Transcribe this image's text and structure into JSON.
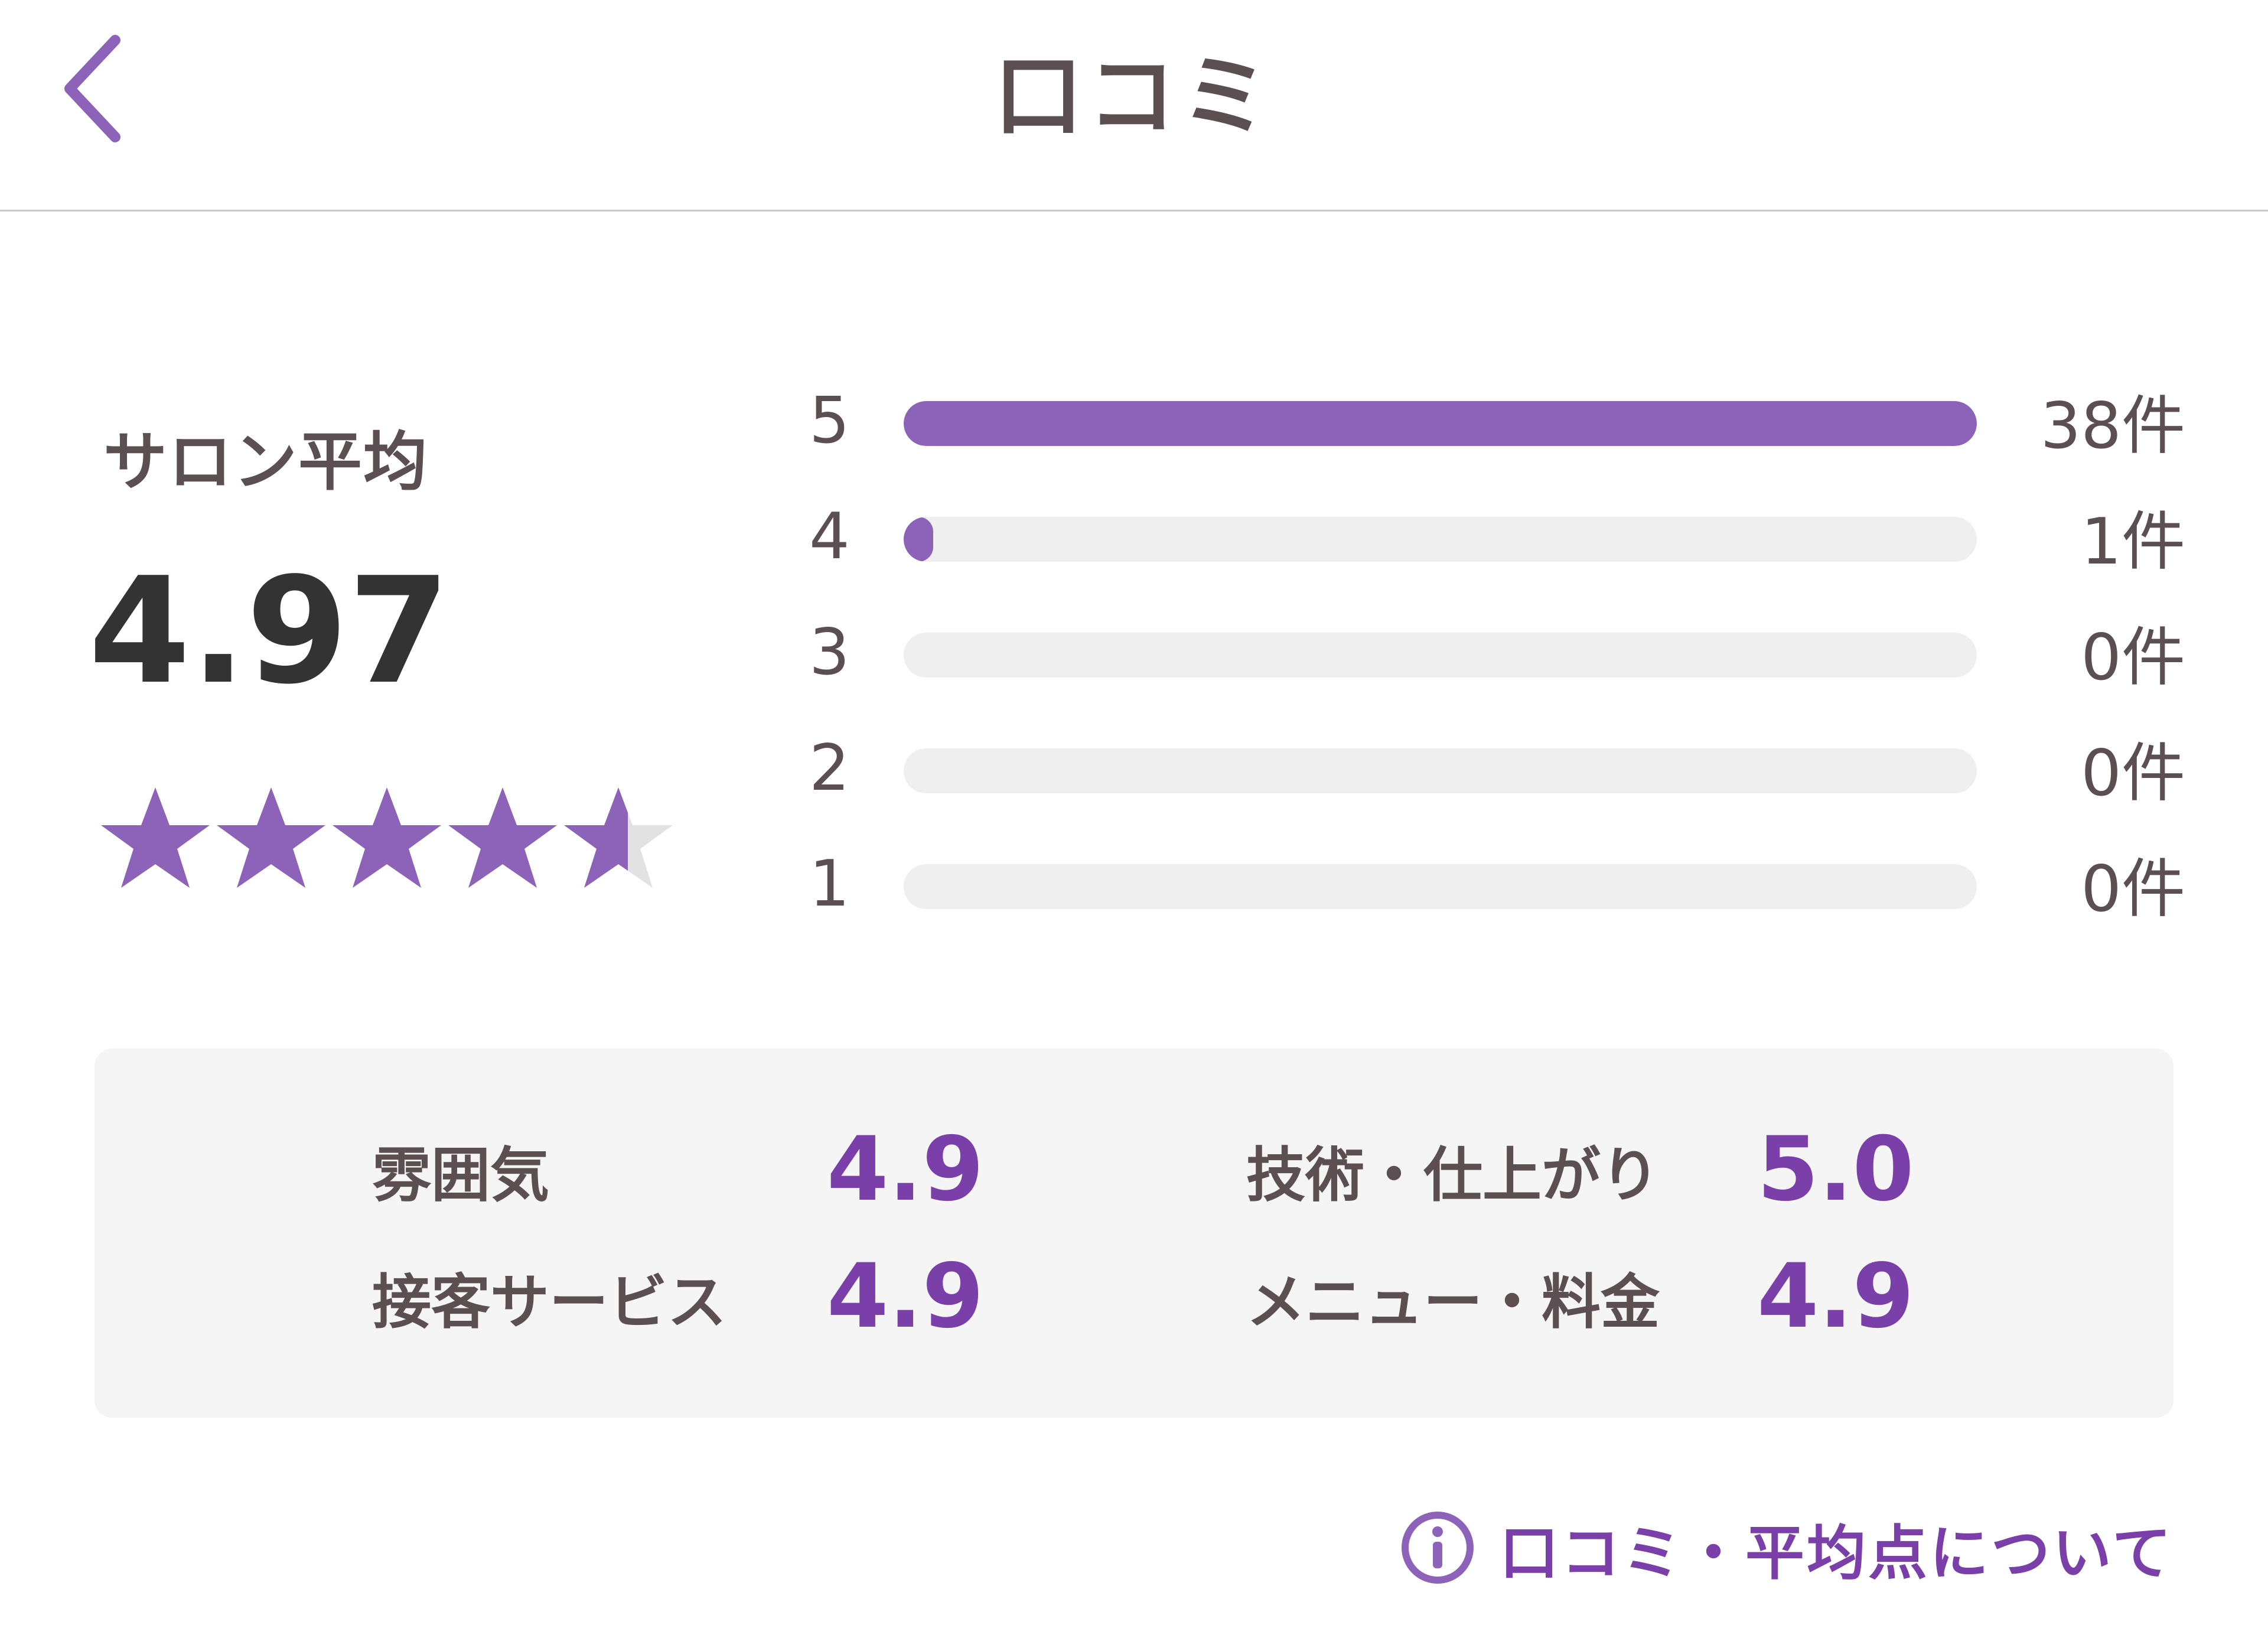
{
  "header": {
    "back_icon": "chevron-left-icon",
    "title": "口コミ"
  },
  "summary": {
    "label": "サロン平均",
    "average": "4.97",
    "rating_value": 4.97,
    "rating_max": 5
  },
  "distribution": [
    {
      "star": "5",
      "count": 38,
      "count_label": "38件"
    },
    {
      "star": "4",
      "count": 1,
      "count_label": "1件"
    },
    {
      "star": "3",
      "count": 0,
      "count_label": "0件"
    },
    {
      "star": "2",
      "count": 0,
      "count_label": "0件"
    },
    {
      "star": "1",
      "count": 0,
      "count_label": "0件"
    }
  ],
  "categories": [
    {
      "label": "雰囲気",
      "score": "4.9"
    },
    {
      "label": "技術・仕上がり",
      "score": "5.0"
    },
    {
      "label": "接客サービス",
      "score": "4.9"
    },
    {
      "label": "メニュー・料金",
      "score": "4.9"
    }
  ],
  "info_link": {
    "icon": "info-icon",
    "label": "口コミ・平均点について"
  },
  "colors": {
    "accent": "#8d63ba",
    "score": "#7a3fa8",
    "track": "#efefef",
    "star_empty": "#e2e2e2",
    "text": "#5b4f52"
  }
}
